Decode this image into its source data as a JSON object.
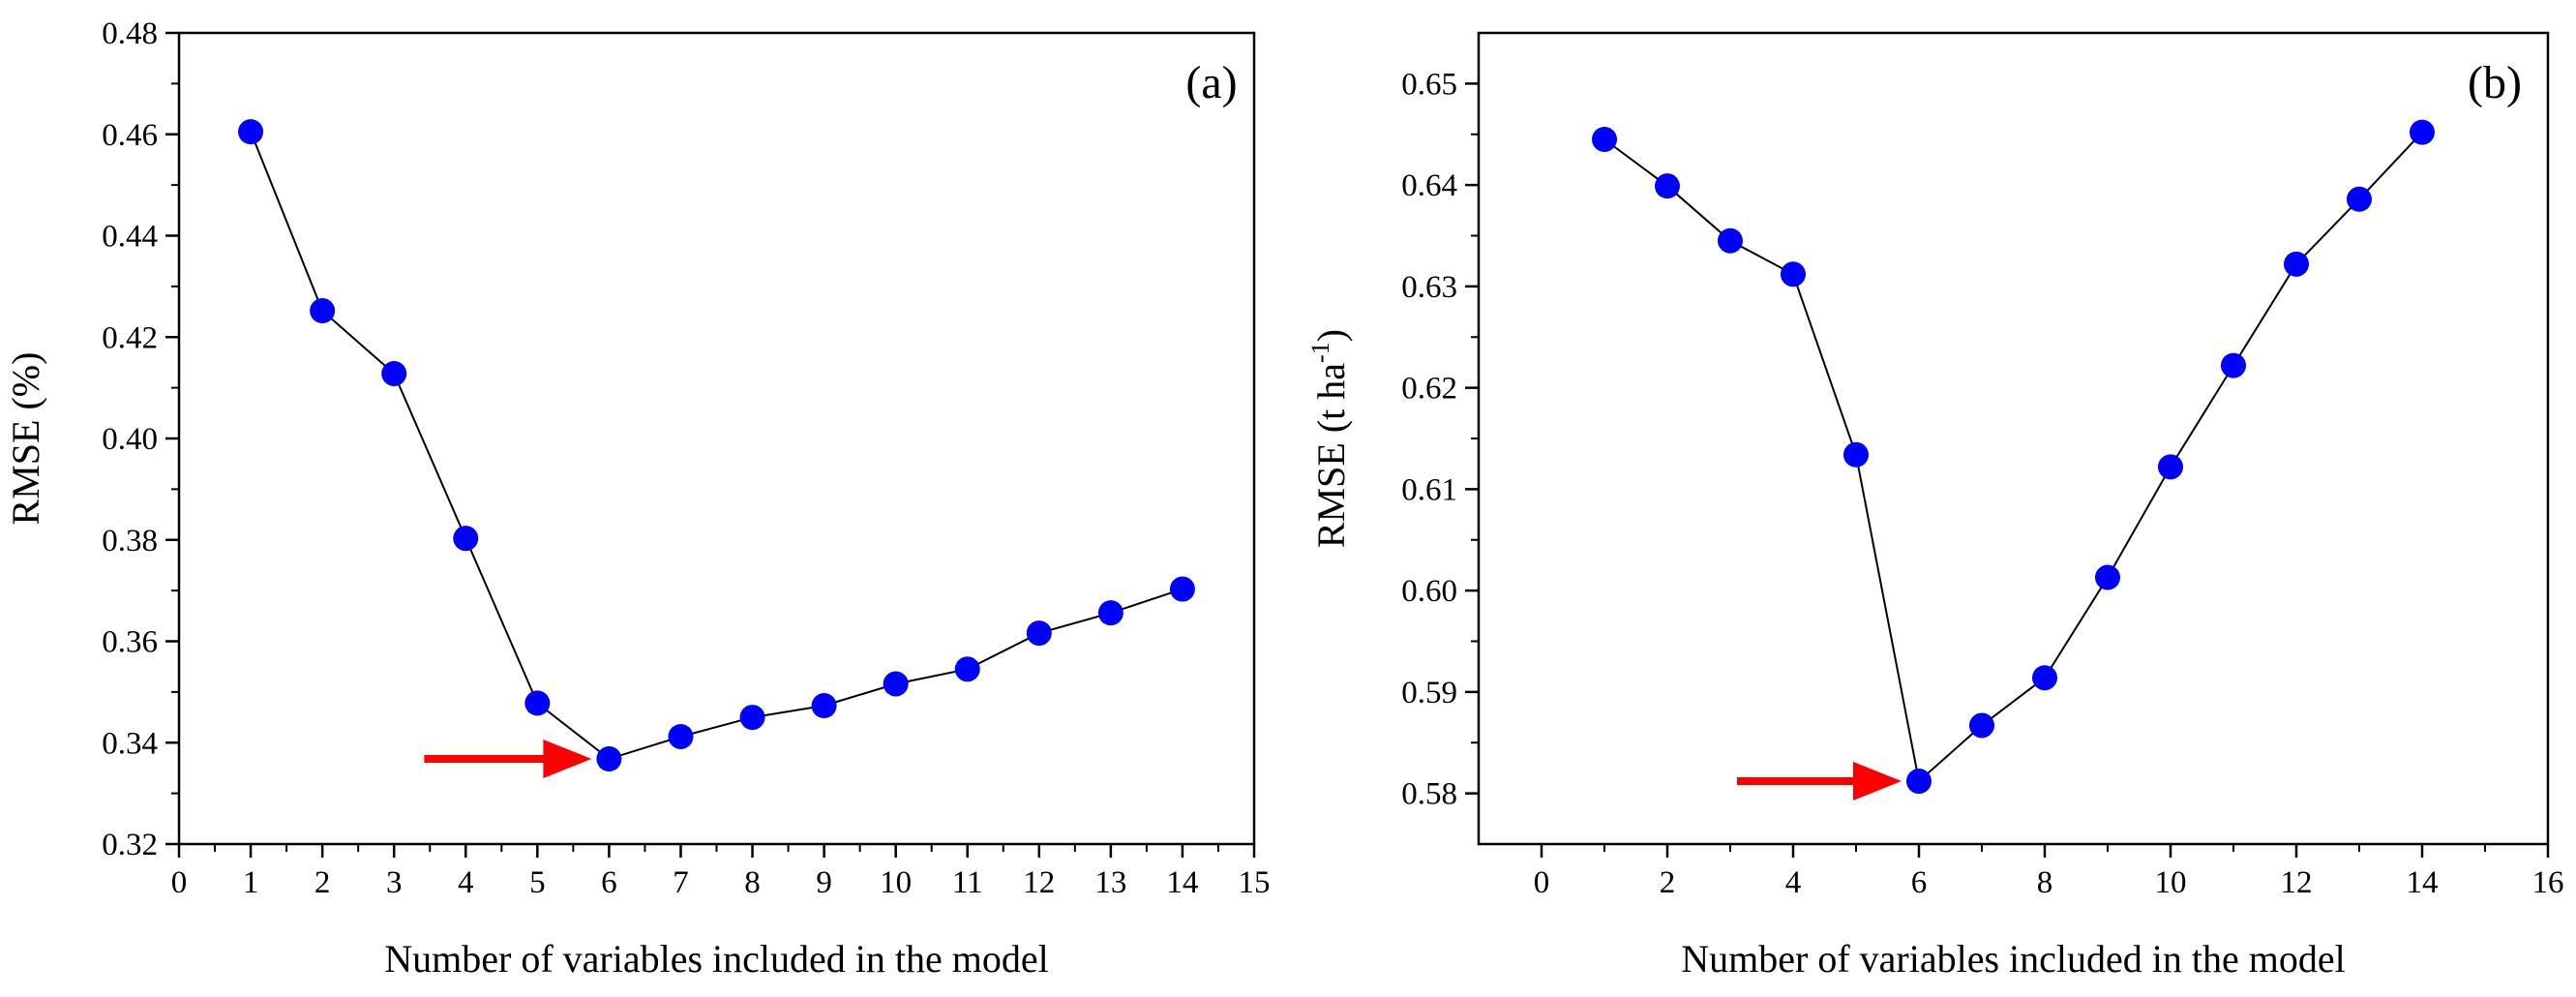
{
  "chart_data": [
    {
      "type": "line",
      "panel_label": "(a)",
      "xlabel": "Number of variables included in the model",
      "ylabel": "RMSE (%)",
      "xlim": [
        0,
        15
      ],
      "ylim": [
        0.32,
        0.48
      ],
      "xticks": [
        0,
        1,
        2,
        3,
        4,
        5,
        6,
        7,
        8,
        9,
        10,
        11,
        12,
        13,
        14,
        15
      ],
      "xtick_labels": [
        "0",
        "1",
        "2",
        "3",
        "4",
        "5",
        "6",
        "7",
        "8",
        "9",
        "10",
        "11",
        "12",
        "13",
        "14",
        "15"
      ],
      "yticks": [
        0.32,
        0.34,
        0.36,
        0.38,
        0.4,
        0.42,
        0.44,
        0.46,
        0.48
      ],
      "ytick_labels": [
        "0.32",
        "0.34",
        "0.36",
        "0.38",
        "0.40",
        "0.42",
        "0.44",
        "0.46",
        "0.48"
      ],
      "x": [
        1,
        2,
        3,
        4,
        5,
        6,
        7,
        8,
        9,
        10,
        11,
        12,
        13,
        14
      ],
      "values": [
        0.4605,
        0.4252,
        0.4128,
        0.3803,
        0.3478,
        0.3368,
        0.3412,
        0.345,
        0.3473,
        0.3516,
        0.3545,
        0.3616,
        0.3656,
        0.3703
      ],
      "annotation": {
        "type": "arrow",
        "points_to_x": 6,
        "color": "#ff0000"
      },
      "marker_color": "#0000ff",
      "line_color": "#000000",
      "legend": "none",
      "grid": false
    },
    {
      "type": "line",
      "panel_label": "(b)",
      "xlabel": "Number of variables included in the model",
      "ylabel_main": "RMSE (t ha",
      "ylabel_sup": "-1",
      "ylabel_end": ")",
      "xlim": [
        -1,
        16
      ],
      "ylim": [
        0.575,
        0.655
      ],
      "xticks": [
        0,
        2,
        4,
        6,
        8,
        10,
        12,
        14,
        16
      ],
      "xtick_labels": [
        "0",
        "2",
        "4",
        "6",
        "8",
        "10",
        "12",
        "14",
        "16"
      ],
      "yticks": [
        0.58,
        0.59,
        0.6,
        0.61,
        0.62,
        0.63,
        0.64,
        0.65
      ],
      "ytick_labels": [
        "0.58",
        "0.59",
        "0.60",
        "0.61",
        "0.62",
        "0.63",
        "0.64",
        "0.65"
      ],
      "x": [
        1,
        2,
        3,
        4,
        5,
        6,
        7,
        8,
        9,
        10,
        11,
        12,
        13,
        14
      ],
      "values": [
        0.6445,
        0.6399,
        0.6345,
        0.6312,
        0.6134,
        0.5812,
        0.5867,
        0.5914,
        0.6013,
        0.6122,
        0.6222,
        0.6322,
        0.6386,
        0.6452
      ],
      "annotation": {
        "type": "arrow",
        "points_to_x": 6,
        "color": "#ff0000"
      },
      "marker_color": "#0000ff",
      "line_color": "#000000",
      "legend": "none",
      "grid": false
    }
  ]
}
